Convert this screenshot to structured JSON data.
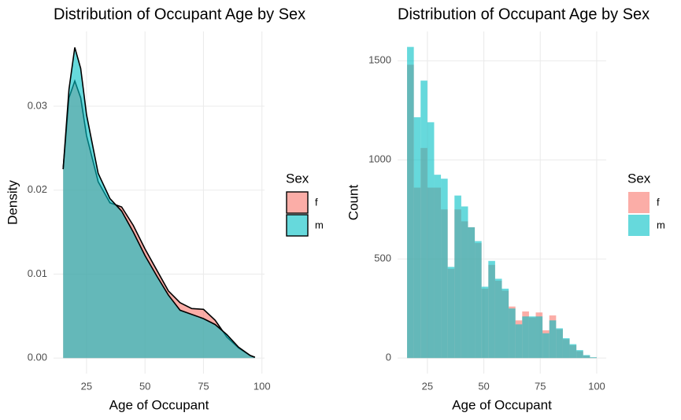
{
  "chart_data": [
    {
      "type": "density",
      "title": "Distribution of Occupant Age by Sex",
      "x_label": "Age of Occupant",
      "y_label": "Density",
      "legend_title": "Sex",
      "legend": "right",
      "grid": true,
      "x": [
        15,
        17.5,
        20,
        22.5,
        25,
        30,
        35,
        40,
        45,
        50,
        55,
        60,
        65,
        70,
        75,
        80,
        85,
        90,
        95,
        97
      ],
      "series": [
        {
          "name": "f",
          "color": "#F8766D",
          "values": [
            0.0225,
            0.031,
            0.033,
            0.031,
            0.0265,
            0.021,
            0.0185,
            0.018,
            0.0158,
            0.013,
            0.0105,
            0.008,
            0.0066,
            0.0059,
            0.0058,
            0.0045,
            0.0025,
            0.0012,
            0.0003,
            0.0001
          ]
        },
        {
          "name": "m",
          "color": "#00BFC4",
          "values": [
            0.0225,
            0.032,
            0.037,
            0.0345,
            0.029,
            0.022,
            0.019,
            0.0175,
            0.015,
            0.0122,
            0.0098,
            0.0075,
            0.0057,
            0.0052,
            0.0047,
            0.004,
            0.0028,
            0.0013,
            0.0003,
            0.0001
          ]
        }
      ],
      "xlim": [
        10.9,
        101.1
      ],
      "xticks": [
        25,
        50,
        75,
        100
      ],
      "ylim": [
        -0.00185,
        0.0389
      ],
      "yticks": [
        {
          "value": 0,
          "label": "0.00"
        },
        0.01,
        0.02,
        0.03
      ]
    },
    {
      "type": "histogram",
      "title": "Distribution of Occupant Age by Sex",
      "x_label": "Age of Occupant",
      "y_label": "Count",
      "legend_title": "Sex",
      "legend": "right",
      "grid": true,
      "bins": [
        16,
        19,
        22,
        25,
        28,
        31,
        34,
        37,
        40,
        43,
        46,
        49,
        52,
        55,
        58,
        61,
        64,
        67,
        70,
        73,
        76,
        79,
        82,
        85,
        88,
        91,
        94,
        97,
        100
      ],
      "series": [
        {
          "name": "f",
          "color": "#F8766D",
          "values": [
            1480,
            860,
            1060,
            860,
            860,
            750,
            450,
            750,
            690,
            660,
            580,
            350,
            470,
            390,
            340,
            260,
            190,
            235,
            205,
            230,
            140,
            215,
            145,
            95,
            65,
            35,
            12,
            3
          ]
        },
        {
          "name": "m",
          "color": "#00BFC4",
          "values": [
            1570,
            1215,
            1400,
            1190,
            925,
            905,
            460,
            820,
            765,
            660,
            590,
            360,
            490,
            400,
            350,
            250,
            170,
            210,
            210,
            210,
            125,
            190,
            150,
            100,
            70,
            40,
            15,
            4
          ]
        }
      ],
      "xlim": [
        11.8,
        104.2
      ],
      "xticks": [
        25,
        50,
        75,
        100
      ],
      "ylim": [
        -78.5,
        1648
      ],
      "yticks": [
        0,
        500,
        1000,
        1500
      ]
    }
  ]
}
